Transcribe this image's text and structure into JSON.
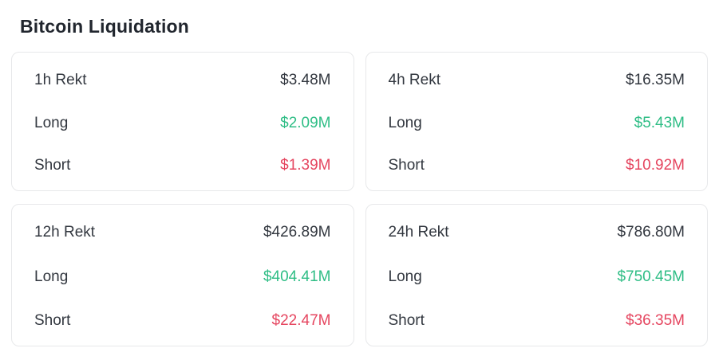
{
  "page": {
    "title": "Bitcoin Liquidation"
  },
  "colors": {
    "long": "#2ebd85",
    "short": "#e5455f",
    "text": "#32373f",
    "title": "#21262e",
    "card_border": "#e7e8ea",
    "background": "#ffffff"
  },
  "cards": [
    {
      "period_label": "1h Rekt",
      "total": "$3.48M",
      "long_label": "Long",
      "long_value": "$2.09M",
      "short_label": "Short",
      "short_value": "$1.39M"
    },
    {
      "period_label": "4h Rekt",
      "total": "$16.35M",
      "long_label": "Long",
      "long_value": "$5.43M",
      "short_label": "Short",
      "short_value": "$10.92M"
    },
    {
      "period_label": "12h Rekt",
      "total": "$426.89M",
      "long_label": "Long",
      "long_value": "$404.41M",
      "short_label": "Short",
      "short_value": "$22.47M"
    },
    {
      "period_label": "24h Rekt",
      "total": "$786.80M",
      "long_label": "Long",
      "long_value": "$750.45M",
      "short_label": "Short",
      "short_value": "$36.35M"
    }
  ]
}
